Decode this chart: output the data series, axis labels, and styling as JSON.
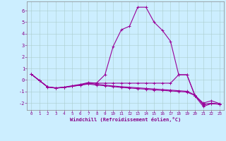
{
  "background_color": "#cceeff",
  "grid_color": "#aacccc",
  "line_color": "#990099",
  "xlim_min": -0.5,
  "xlim_max": 23.5,
  "ylim_min": -2.6,
  "ylim_max": 6.8,
  "xtick_labels": [
    "0",
    "1",
    "2",
    "3",
    "4",
    "5",
    "6",
    "7",
    "8",
    "9",
    "10",
    "11",
    "12",
    "13",
    "14",
    "15",
    "16",
    "17",
    "18",
    "19",
    "20",
    "21",
    "22",
    "23"
  ],
  "ytick_vals": [
    -2,
    -1,
    0,
    1,
    2,
    3,
    4,
    5,
    6
  ],
  "xlabel": "Windchill (Refroidissement éolien,°C)",
  "series": [
    [
      0.5,
      -0.05,
      -0.6,
      -0.7,
      -0.65,
      -0.55,
      -0.45,
      -0.3,
      -0.25,
      0.45,
      2.9,
      4.35,
      4.65,
      6.3,
      6.3,
      5.0,
      4.3,
      3.35,
      0.45,
      0.45,
      -1.4,
      -2.3,
      -2.05,
      -2.1
    ],
    [
      0.5,
      -0.05,
      -0.6,
      -0.7,
      -0.65,
      -0.55,
      -0.45,
      -0.35,
      -0.45,
      -0.5,
      -0.58,
      -0.65,
      -0.7,
      -0.75,
      -0.8,
      -0.87,
      -0.9,
      -0.95,
      -1.0,
      -1.05,
      -1.35,
      -2.1,
      -2.05,
      -2.1
    ],
    [
      0.5,
      -0.05,
      -0.6,
      -0.68,
      -0.62,
      -0.5,
      -0.38,
      -0.22,
      -0.28,
      -0.28,
      -0.28,
      -0.28,
      -0.28,
      -0.28,
      -0.28,
      -0.28,
      -0.28,
      -0.28,
      0.45,
      0.45,
      -1.35,
      -2.0,
      -1.8,
      -2.05
    ],
    [
      0.5,
      -0.05,
      -0.62,
      -0.71,
      -0.64,
      -0.53,
      -0.42,
      -0.28,
      -0.37,
      -0.45,
      -0.52,
      -0.58,
      -0.63,
      -0.68,
      -0.73,
      -0.78,
      -0.83,
      -0.88,
      -0.93,
      -0.98,
      -1.3,
      -2.15,
      -2.0,
      -2.1
    ]
  ]
}
